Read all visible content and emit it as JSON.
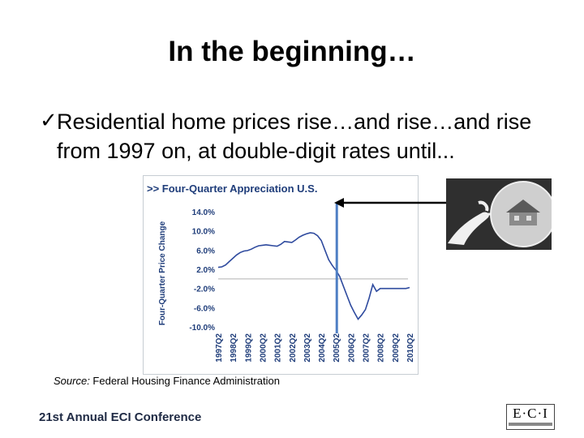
{
  "slide": {
    "title": "In the beginning…",
    "bullet": "Residential home prices rise…and rise…and rise from 1997 on, at double-digit rates until...",
    "source_label": "Source:",
    "source_text": " Federal Housing Finance Administration",
    "footer": "21st Annual ECI Conference",
    "logo_text": "E·C·I"
  },
  "icons": {
    "bullet": "checkmark-icon",
    "arrow": "left-arrow-icon",
    "image": "hand-holding-bubble-with-house"
  },
  "colors": {
    "chart_title": "#1f3d7a",
    "series": "#2e4a9e",
    "marker_line": "#4f7fc4",
    "zero_line": "#b0b0b0"
  },
  "chart_data": {
    "type": "line",
    "title": ">> Four-Quarter Appreciation U.S.",
    "ylabel": "Four-Quarter Price Change",
    "xlabel": "",
    "ylim": [
      -10,
      14
    ],
    "yticks": [
      "14.0%",
      "10.0%",
      "6.0%",
      "2.0%",
      "-2.0%",
      "-6.0%",
      "-10.0%"
    ],
    "ytick_values": [
      14,
      10,
      6,
      2,
      -2,
      -6,
      -10
    ],
    "categories": [
      "1997Q2",
      "1998Q2",
      "1999Q2",
      "2000Q2",
      "2001Q2",
      "2002Q2",
      "2003Q2",
      "2004Q2",
      "2005Q2",
      "2006Q2",
      "2007Q2",
      "2008Q2",
      "2009Q2",
      "2010Q2"
    ],
    "marker_at": "2005Q2",
    "series": [
      {
        "x": [
          1997.25,
          1997.5,
          1997.75,
          1998.0,
          1998.25,
          1998.5,
          1998.75,
          1999.0,
          1999.25,
          1999.5,
          1999.75,
          2000.0,
          2000.25,
          2000.5,
          2000.75,
          2001.0,
          2001.25,
          2001.5,
          2001.75,
          2002.0,
          2002.25,
          2002.5,
          2002.75,
          2003.0,
          2003.25,
          2003.5,
          2003.75,
          2004.0,
          2004.25,
          2004.5,
          2004.75,
          2005.0,
          2005.25,
          2005.5,
          2005.75,
          2006.0,
          2006.25,
          2006.5,
          2006.75,
          2007.0,
          2007.25,
          2007.5,
          2007.75,
          2008.0,
          2008.25,
          2008.5,
          2008.75,
          2009.0,
          2009.25,
          2009.5,
          2009.75,
          2010.0,
          2010.25
        ],
        "values": [
          2.4,
          2.5,
          2.9,
          3.6,
          4.3,
          5.0,
          5.5,
          5.8,
          5.9,
          6.2,
          6.6,
          6.9,
          7.0,
          7.1,
          7.0,
          6.9,
          6.8,
          7.2,
          7.8,
          7.7,
          7.6,
          8.1,
          8.7,
          9.1,
          9.4,
          9.6,
          9.5,
          9.0,
          8.0,
          6.0,
          4.0,
          2.8,
          1.8,
          0.5,
          -1.5,
          -3.5,
          -5.5,
          -7.0,
          -8.4,
          -7.5,
          -6.4,
          -4.0,
          -1.2,
          -2.6,
          -2.0,
          -2.0,
          -2.0,
          -2.0,
          -2.0,
          -2.0,
          -2.0,
          -2.0,
          -1.8
        ]
      }
    ],
    "grid": false
  }
}
